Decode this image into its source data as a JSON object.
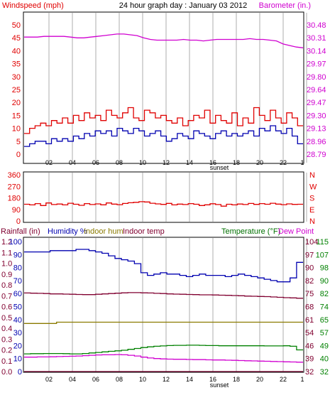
{
  "colors": {
    "red": "#e00000",
    "blue": "#0000b0",
    "magenta": "#d000d0",
    "maroon": "#800030",
    "olive": "#8a7a00",
    "green": "#008000",
    "darkgreen": "#007000",
    "grid": "#c8c8c8",
    "frame": "#000000"
  },
  "chart_data": [
    {
      "type": "line",
      "title": "24 hour graph day : January 03 2012",
      "left_axis_label": "Windspeed (mph)",
      "right_axis_label": "Barometer (in.)",
      "left_ticks": [
        "0",
        "5",
        "10",
        "15",
        "20",
        "25",
        "30",
        "35",
        "40",
        "45",
        "50"
      ],
      "right_ticks": [
        "28.79",
        "28.96",
        "29.13",
        "29.30",
        "29.47",
        "29.64",
        "29.80",
        "29.97",
        "30.14",
        "30.31",
        "30.48"
      ],
      "left_range": [
        0,
        50
      ],
      "right_range": [
        28.79,
        30.48
      ],
      "x_ticks": [
        "02",
        "04",
        "06",
        "08",
        "10",
        "12",
        "14",
        "16",
        "18",
        "20",
        "22"
      ],
      "x_end_tick": "1",
      "x_marker_label": "sunset",
      "grid": "vertical",
      "series": [
        {
          "key": "wind_gust",
          "axis": "left",
          "color_key": "red",
          "values": [
            8,
            10,
            11,
            12,
            11,
            13,
            12,
            14,
            12,
            15,
            13,
            16,
            14,
            15,
            13,
            17,
            15,
            14,
            16,
            18,
            14,
            13,
            17,
            16,
            14,
            15,
            13,
            12,
            14,
            11,
            13,
            15,
            14,
            17,
            12,
            15,
            13,
            12,
            16,
            11,
            14,
            12,
            18,
            15,
            13,
            17,
            14,
            12,
            16,
            14,
            11
          ]
        },
        {
          "key": "wind_avg",
          "axis": "left",
          "color_key": "blue",
          "values": [
            3,
            4,
            5,
            5,
            4,
            6,
            5,
            6,
            5,
            7,
            6,
            8,
            7,
            9,
            8,
            9,
            7,
            10,
            9,
            8,
            10,
            9,
            7,
            8,
            9,
            7,
            5,
            6,
            8,
            7,
            6,
            9,
            8,
            7,
            6,
            8,
            9,
            7,
            8,
            7,
            8,
            9,
            7,
            10,
            9,
            11,
            9,
            8,
            10,
            7,
            4
          ]
        },
        {
          "key": "barometer",
          "axis": "right",
          "color_key": "magenta",
          "values": [
            30.32,
            30.32,
            30.32,
            30.33,
            30.33,
            30.33,
            30.33,
            30.32,
            30.31,
            30.31,
            30.32,
            30.33,
            30.34,
            30.35,
            30.36,
            30.36,
            30.35,
            30.34,
            30.31,
            30.29,
            30.28,
            30.28,
            30.28,
            30.28,
            30.29,
            30.28,
            30.28,
            30.27,
            30.28,
            30.29,
            30.29,
            30.29,
            30.29,
            30.29,
            30.3,
            30.29,
            30.29,
            30.28,
            30.27,
            30.23,
            30.21,
            30.19,
            30.18
          ]
        }
      ]
    },
    {
      "type": "line",
      "left_ticks": [
        "0",
        "90",
        "180",
        "270",
        "360"
      ],
      "right_ticks": [
        "N",
        "E",
        "S",
        "W",
        "N"
      ],
      "left_range": [
        0,
        360
      ],
      "x_ticks": [],
      "grid": "vertical",
      "series": [
        {
          "key": "wind_direction",
          "axis": "left",
          "color_key": "red",
          "values": [
            130,
            125,
            135,
            120,
            140,
            128,
            132,
            125,
            138,
            130,
            122,
            135,
            128,
            133,
            126,
            140,
            131,
            127,
            136,
            142,
            145,
            150,
            148,
            138,
            133,
            129,
            137,
            125,
            131,
            128,
            135,
            130,
            120,
            126,
            134,
            128,
            115,
            130,
            125,
            132,
            128,
            136,
            129,
            135,
            130,
            138,
            131,
            127,
            133,
            129,
            130
          ]
        }
      ]
    },
    {
      "type": "line",
      "legend": [
        "Rainfall (in)",
        "Humidity %",
        "Indoor hum",
        "Indoor temp",
        "Temperature (°F)",
        "Dew Point"
      ],
      "left_ticks_rain": [
        "0.0",
        "0.1",
        "0.2",
        "0.3",
        "0.4",
        "0.5",
        "0.6",
        "0.7",
        "0.8",
        "0.9",
        "1.0",
        "1.1",
        "1.2"
      ],
      "left_ticks_hum": [
        "0",
        "10",
        "20",
        "30",
        "40",
        "50",
        "60",
        "70",
        "80",
        "90",
        "100"
      ],
      "right_ticks_a": [
        "32",
        "39",
        "46",
        "54",
        "61",
        "68",
        "75",
        "82",
        "90",
        "97",
        "104"
      ],
      "right_ticks_b": [
        "32",
        "40",
        "49",
        "57",
        "65",
        "74",
        "82",
        "90",
        "98",
        "107",
        "115"
      ],
      "right_a_range": [
        32,
        104
      ],
      "left_range": [
        0,
        100
      ],
      "x_ticks": [
        "02",
        "04",
        "06",
        "08",
        "10",
        "12",
        "14",
        "16",
        "18",
        "20",
        "22"
      ],
      "x_end_tick": "1",
      "x_marker_label": "sunset",
      "grid": "vertical",
      "series": [
        {
          "key": "humidity",
          "axis": "hum",
          "color_key": "blue",
          "values": [
            92,
            92,
            92,
            92,
            93,
            93,
            93,
            93,
            94,
            94,
            93,
            92,
            91,
            89,
            87,
            86,
            85,
            83,
            76,
            74,
            75,
            76,
            75,
            75,
            74,
            73,
            74,
            75,
            74,
            74,
            74,
            73,
            74,
            75,
            74,
            73,
            72,
            71,
            70,
            69,
            69,
            72,
            84
          ]
        },
        {
          "key": "indoor_temp",
          "axis": "a",
          "color_key": "maroon",
          "values": [
            75.5,
            75.4,
            75.3,
            75.2,
            75.0,
            75.0,
            74.9,
            74.8,
            74.7,
            74.6,
            74.6,
            74.8,
            75.0,
            75.2,
            75.4,
            75.6,
            75.7,
            75.7,
            75.6,
            75.5,
            75.3,
            75.2,
            75.0,
            74.9,
            74.8,
            74.7,
            74.6,
            74.5,
            74.5,
            74.4,
            74.3,
            74.2,
            74.1,
            74.0,
            73.8,
            73.7,
            73.6,
            73.5,
            73.3,
            73.1,
            72.9,
            72.8,
            72.6
          ]
        },
        {
          "key": "indoor_hum",
          "axis": "hum",
          "color_key": "olive",
          "values": [
            37,
            37,
            37,
            37,
            37,
            38,
            38,
            38,
            38,
            38,
            38,
            38,
            38,
            38,
            38,
            38,
            38,
            38,
            38,
            38,
            38,
            38,
            38,
            38,
            38,
            38,
            38,
            38,
            38,
            38,
            38,
            38,
            38,
            38,
            38,
            38,
            38,
            38,
            38,
            38,
            38,
            38,
            38
          ]
        },
        {
          "key": "temperature",
          "axis": "a",
          "color_key": "green",
          "values": [
            41.8,
            41.9,
            41.9,
            42.0,
            42.0,
            42.0,
            41.9,
            41.8,
            41.8,
            42.0,
            42.3,
            42.6,
            42.9,
            43.2,
            43.5,
            43.8,
            44.3,
            44.8,
            45.3,
            45.7,
            46.0,
            46.2,
            46.4,
            46.5,
            46.5,
            46.6,
            46.6,
            46.5,
            46.4,
            46.4,
            46.3,
            46.3,
            46.3,
            46.3,
            46.3,
            46.3,
            46.3,
            46.2,
            46.2,
            46.2,
            46.3,
            46.0,
            44.0
          ]
        },
        {
          "key": "dew_point",
          "axis": "a",
          "color_key": "magenta",
          "values": [
            40.0,
            40.0,
            40.1,
            40.1,
            40.2,
            40.3,
            40.4,
            40.5,
            40.6,
            40.8,
            41.0,
            41.2,
            41.3,
            41.3,
            41.4,
            41.3,
            41.0,
            40.6,
            40.0,
            39.5,
            39.2,
            39.0,
            38.9,
            38.8,
            38.8,
            38.7,
            38.6,
            38.6,
            38.5,
            38.4,
            38.4,
            38.3,
            38.2,
            38.1,
            38.0,
            37.9,
            37.8,
            37.7,
            37.6,
            37.5,
            37.4,
            37.3,
            37.2
          ]
        },
        {
          "key": "rainfall",
          "axis": "rain",
          "color_key": "maroon",
          "values": [
            0,
            0,
            0,
            0,
            0,
            0,
            0,
            0,
            0,
            0,
            0,
            0,
            0,
            0,
            0,
            0,
            0,
            0,
            0,
            0,
            0,
            0,
            0,
            0,
            0,
            0,
            0,
            0,
            0,
            0,
            0,
            0,
            0,
            0,
            0,
            0,
            0,
            0,
            0,
            0,
            0,
            0,
            0
          ]
        }
      ]
    }
  ]
}
